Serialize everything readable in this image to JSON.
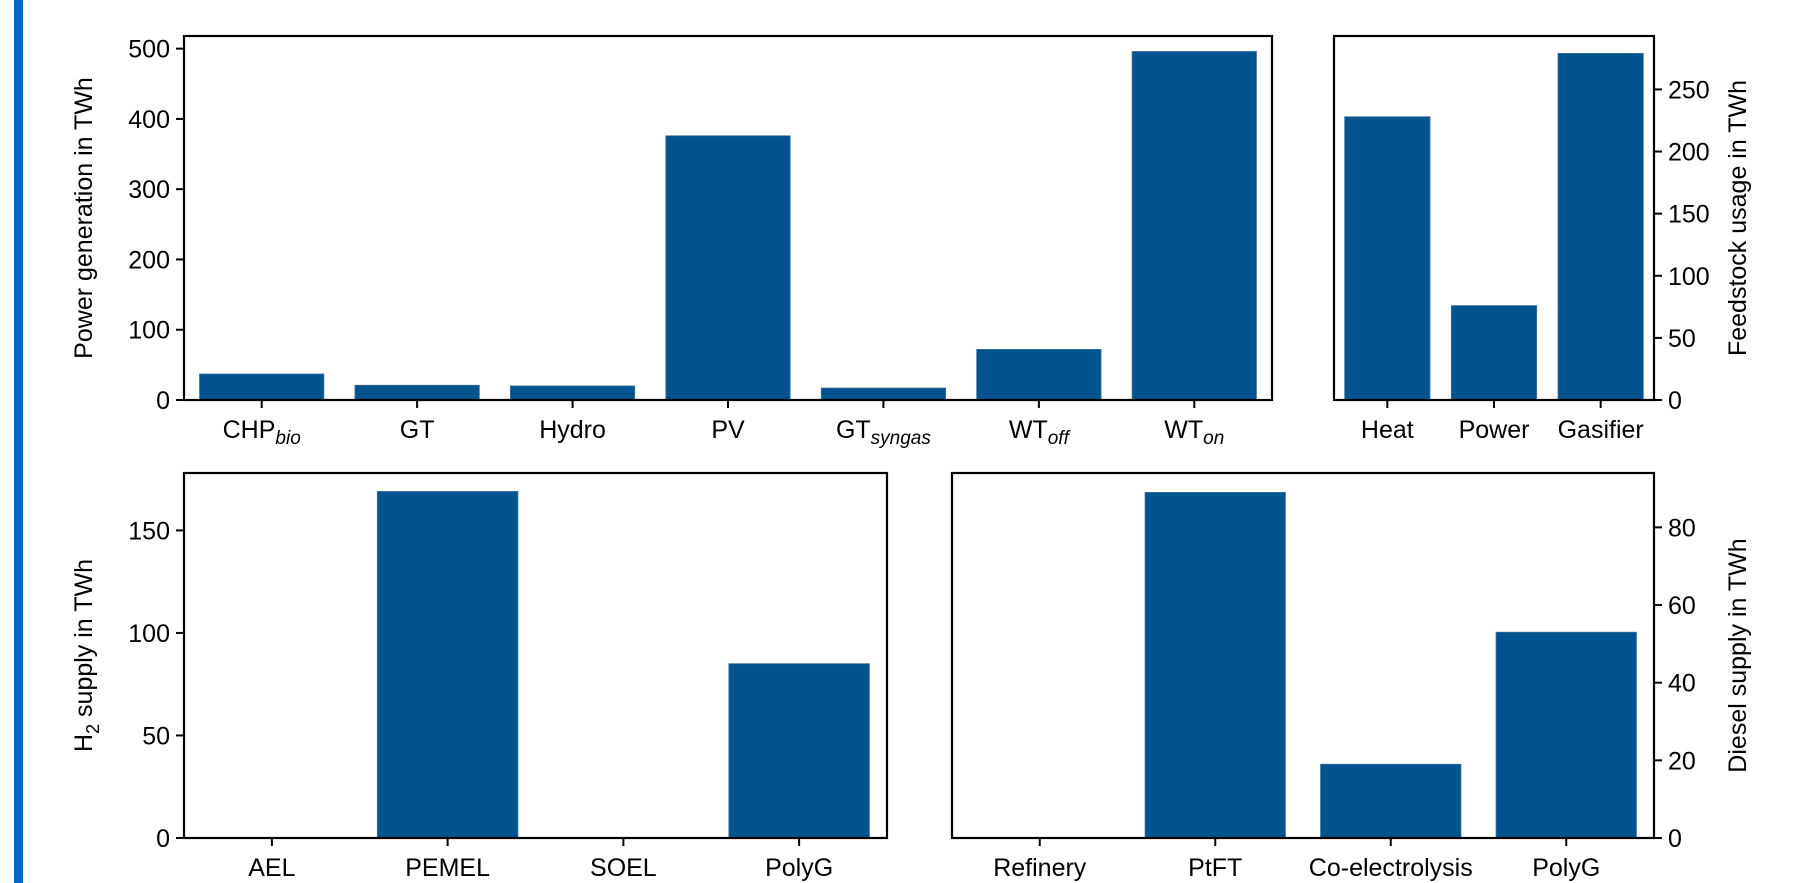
{
  "colors": {
    "bar": "#02548f",
    "accent": "#0066cc",
    "axis": "#000000"
  },
  "chart_data": [
    {
      "type": "bar",
      "categories": [
        {
          "base": "CHP",
          "sub": "bio"
        },
        {
          "base": "GT",
          "sub": ""
        },
        {
          "base": "Hydro",
          "sub": ""
        },
        {
          "base": "PV",
          "sub": ""
        },
        {
          "base": "GT",
          "sub": "syngas"
        },
        {
          "base": "WT",
          "sub": "off"
        },
        {
          "base": "WT",
          "sub": "on"
        }
      ],
      "values": [
        37,
        21,
        20,
        376,
        17,
        72,
        496
      ],
      "ylabel": "Power generation in TWh",
      "ylabel_sub": "",
      "ylabel_rest": "",
      "ylim": [
        0,
        518
      ],
      "yticks": [
        0,
        100,
        200,
        300,
        400,
        500
      ],
      "yaxis_side": "left",
      "grid": false
    },
    {
      "type": "bar",
      "categories": [
        {
          "base": "Heat",
          "sub": ""
        },
        {
          "base": "Power",
          "sub": ""
        },
        {
          "base": "Gasifier",
          "sub": ""
        }
      ],
      "values": [
        228,
        76,
        279
      ],
      "ylabel": "Feedstock usage in TWh",
      "ylabel_sub": "",
      "ylabel_rest": "",
      "ylim": [
        0,
        293
      ],
      "yticks": [
        0,
        50,
        100,
        150,
        200,
        250
      ],
      "yaxis_side": "right",
      "grid": false
    },
    {
      "type": "bar",
      "categories": [
        {
          "base": "AEL",
          "sub": ""
        },
        {
          "base": "PEMEL",
          "sub": ""
        },
        {
          "base": "SOEL",
          "sub": ""
        },
        {
          "base": "PolyG",
          "sub": ""
        }
      ],
      "values": [
        0,
        169,
        0,
        85
      ],
      "ylabel": "H",
      "ylabel_sub": "2",
      "ylabel_rest": " supply in TWh",
      "ylim": [
        0,
        178
      ],
      "yticks": [
        0,
        50,
        100,
        150
      ],
      "yaxis_side": "left",
      "grid": false
    },
    {
      "type": "bar",
      "categories": [
        {
          "base": "Refinery",
          "sub": ""
        },
        {
          "base": "PtFT",
          "sub": ""
        },
        {
          "base": "Co-electrolysis",
          "sub": ""
        },
        {
          "base": "PolyG",
          "sub": ""
        }
      ],
      "values": [
        0,
        89,
        19,
        53
      ],
      "ylabel": "Diesel supply in TWh",
      "ylabel_sub": "",
      "ylabel_rest": "",
      "ylim": [
        0,
        94
      ],
      "yticks": [
        0,
        20,
        40,
        60,
        80
      ],
      "yaxis_side": "right",
      "grid": false
    }
  ]
}
